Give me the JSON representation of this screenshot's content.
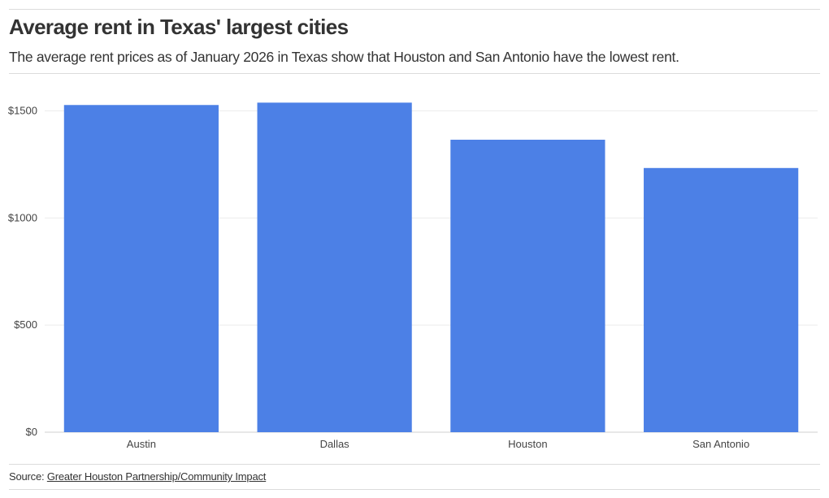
{
  "header": {
    "title": "Average rent in Texas' largest cities",
    "subtitle": "The average rent prices as of January 2026 in Texas show that Houston and San Antonio have the lowest rent."
  },
  "footer": {
    "source_label": "Source: ",
    "source_link": "Greater Houston Partnership/Community Impact"
  },
  "chart_data": {
    "type": "bar",
    "categories": [
      "Austin",
      "Dallas",
      "Houston",
      "San Antonio"
    ],
    "values": [
      1527,
      1538,
      1365,
      1233
    ],
    "title": "Average rent in Texas' largest cities",
    "subtitle": "The average rent prices as of January 2026 in Texas show that Houston and San Antonio have the lowest rent.",
    "xlabel": "",
    "ylabel": "",
    "ylim": [
      0,
      1600
    ],
    "yticks": [
      0,
      500,
      1000,
      1500
    ],
    "ytick_labels": [
      "$0",
      "$500",
      "$1000",
      "$1500"
    ],
    "grid": true,
    "legend": "none",
    "bar_color": "#4c80e6"
  }
}
